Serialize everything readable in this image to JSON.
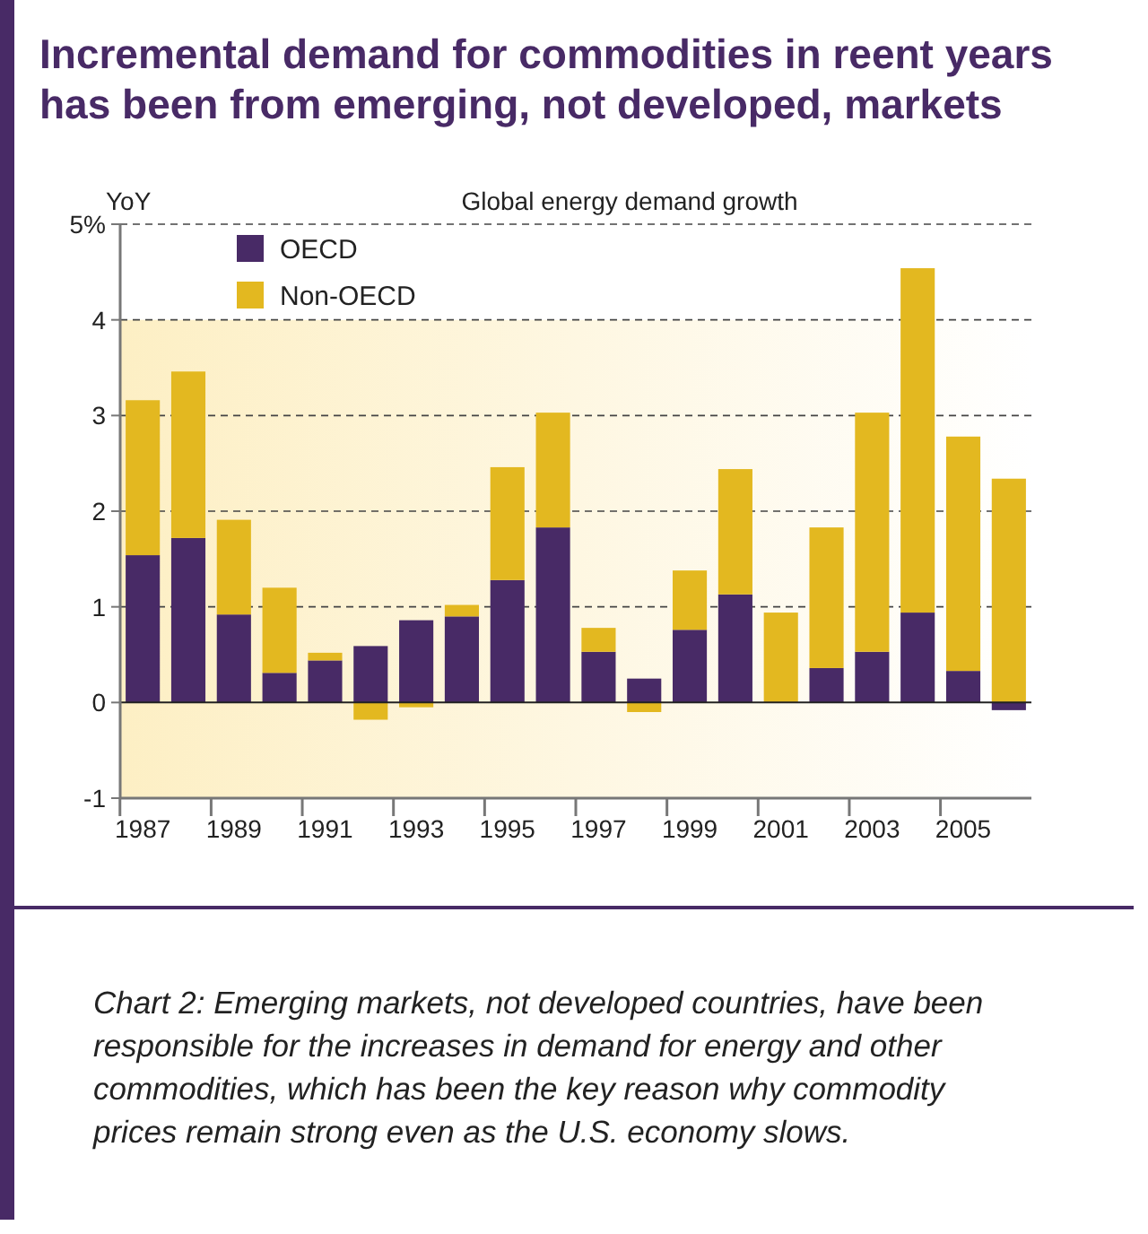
{
  "chart_data": {
    "type": "bar",
    "title": "Incremental demand for commodities in reent years has been from emerging, not developed, markets",
    "subtitle": "Global energy demand growth",
    "ylabel": "YoY",
    "categories": [
      "1987",
      null,
      "1989",
      null,
      "1991",
      null,
      "1993",
      null,
      "1995",
      null,
      "1997",
      null,
      "1999",
      null,
      "2001",
      null,
      "2003",
      null,
      "2005",
      null
    ],
    "stacked": true,
    "series": [
      {
        "name": "OECD",
        "color": "#482a66",
        "values": [
          1.54,
          1.72,
          0.92,
          0.31,
          0.44,
          0.59,
          0.86,
          0.9,
          1.28,
          1.83,
          0.53,
          0.25,
          0.76,
          1.13,
          0,
          0.36,
          0.53,
          0.94,
          0.33,
          -0.08
        ]
      },
      {
        "name": "Non-OECD",
        "color": "#e3b820",
        "values": [
          1.62,
          1.74,
          0.99,
          0.89,
          0.08,
          -0.18,
          -0.05,
          0.12,
          1.18,
          1.2,
          0.25,
          -0.1,
          0.62,
          1.31,
          0.94,
          1.47,
          2.5,
          3.6,
          2.45,
          2.34
        ]
      }
    ],
    "ylim": [
      -1,
      5
    ],
    "yticks": [
      -1,
      0,
      1,
      2,
      3,
      4,
      {
        "value": 5,
        "label": "5%"
      }
    ],
    "grid": "y",
    "legend": "top left",
    "bands": [
      {
        "axis": "y",
        "from": -1,
        "to": 4,
        "color": "#fdefc4"
      }
    ],
    "annotations": [
      "Chart 2: Emerging markets, not developed countries, have been responsible for the increases in demand for energy and other commodities, which has been the key reason why commodity prices remain strong even as the U.S. economy slows."
    ]
  }
}
